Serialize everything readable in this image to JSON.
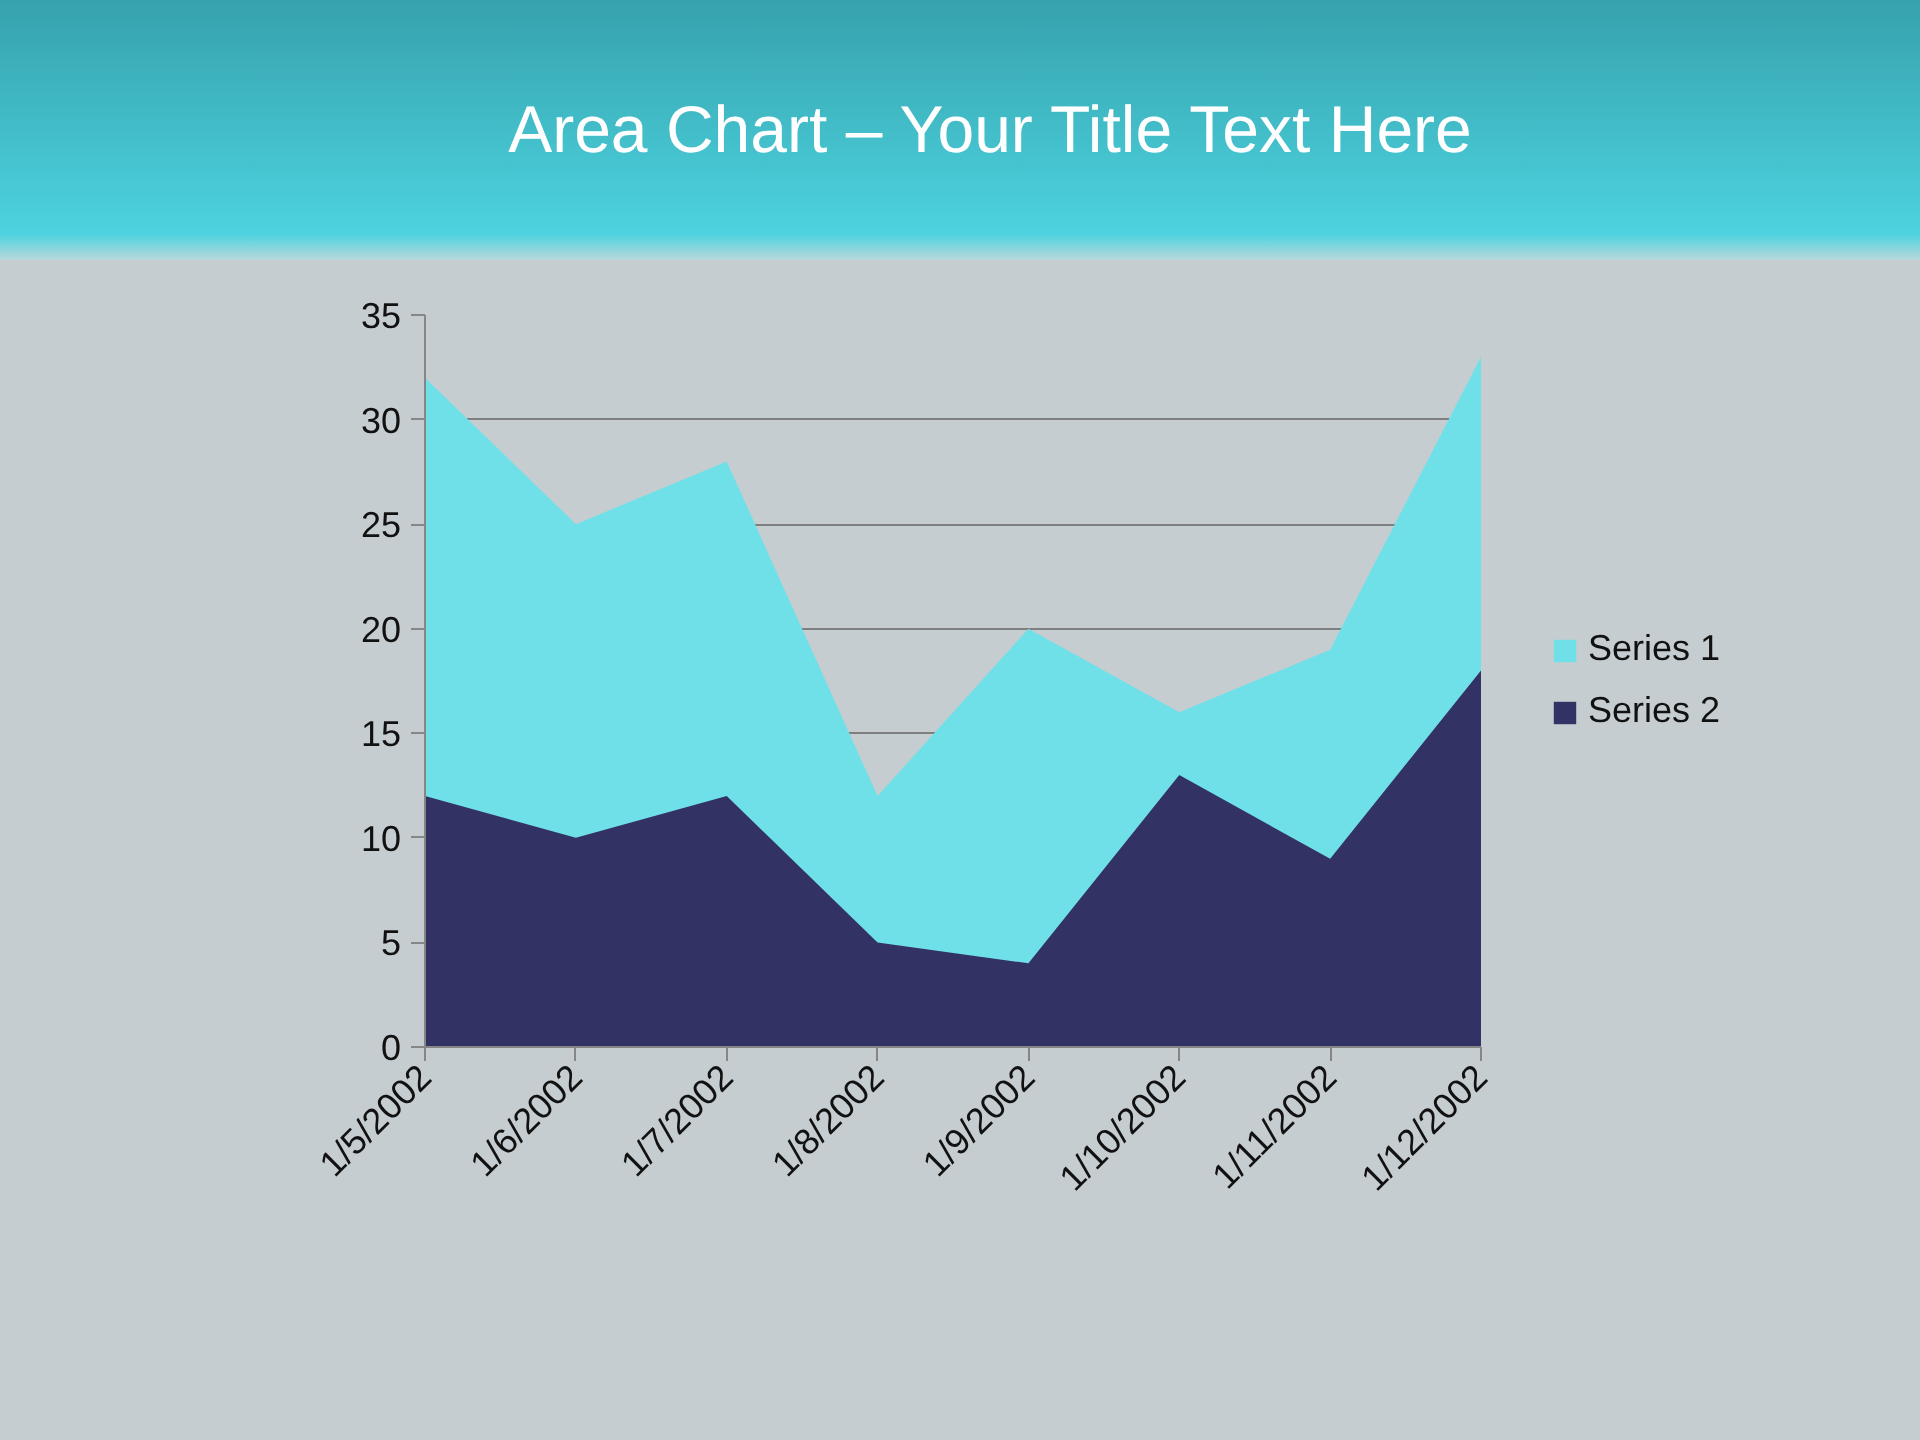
{
  "chart_data": {
    "type": "area",
    "title": "Area Chart – Your Title Text Here",
    "categories": [
      "1/5/2002",
      "1/6/2002",
      "1/7/2002",
      "1/8/2002",
      "1/9/2002",
      "1/10/2002",
      "1/11/2002",
      "1/12/2002"
    ],
    "series": [
      {
        "name": "Series 1",
        "color": "#70e0e8",
        "values": [
          32,
          25,
          28,
          12,
          20,
          16,
          19,
          33
        ]
      },
      {
        "name": "Series 2",
        "color": "#323264",
        "values": [
          12,
          10,
          12,
          5,
          4,
          13,
          9,
          18
        ]
      }
    ],
    "ylim": [
      0,
      35
    ],
    "yticks": [
      0,
      5,
      10,
      15,
      20,
      25,
      30,
      35
    ],
    "grid": "y",
    "legend": "right"
  }
}
